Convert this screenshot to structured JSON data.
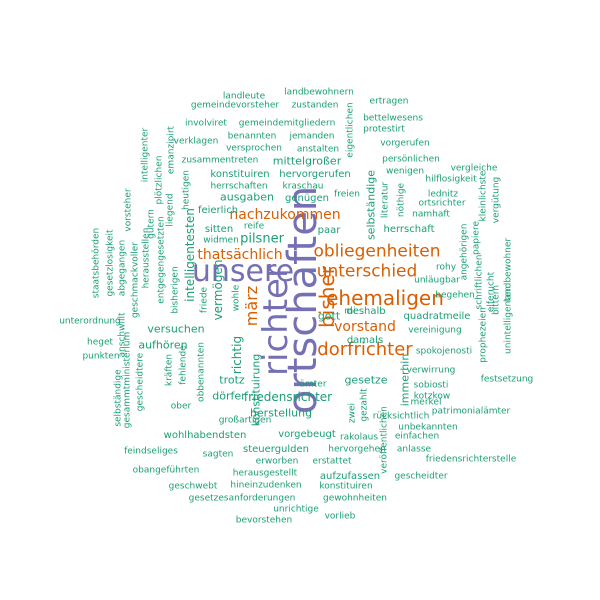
{
  "palette": {
    "teal": "#1b9e77",
    "orange": "#d95f02",
    "purple": "#7570b3"
  },
  "words": [
    {
      "text": "ortschaften",
      "color": "purple"
    },
    {
      "text": "richter",
      "color": "purple"
    },
    {
      "text": "unsere",
      "color": "purple"
    },
    {
      "text": "bisher",
      "color": "orange"
    },
    {
      "text": "ehemaligen",
      "color": "orange"
    },
    {
      "text": "dorfrichter",
      "color": "orange"
    },
    {
      "text": "obliegenheiten",
      "color": "orange"
    },
    {
      "text": "unterschied",
      "color": "orange"
    },
    {
      "text": "märz",
      "color": "orange"
    },
    {
      "text": "thatsächlich",
      "color": "orange"
    },
    {
      "text": "nachzukommen",
      "color": "orange"
    },
    {
      "text": "vorstand",
      "color": "orange"
    },
    {
      "text": "landleute",
      "color": "teal"
    },
    {
      "text": "landbewohnern",
      "color": "teal"
    },
    {
      "text": "gemeindevorsteher",
      "color": "teal"
    },
    {
      "text": "zustanden",
      "color": "teal"
    },
    {
      "text": "ertragen",
      "color": "teal"
    },
    {
      "text": "bettelwesens",
      "color": "teal"
    },
    {
      "text": "involviret",
      "color": "teal"
    },
    {
      "text": "gemeindemitgliedern",
      "color": "teal"
    },
    {
      "text": "protestirt",
      "color": "teal"
    },
    {
      "text": "benannten",
      "color": "teal"
    },
    {
      "text": "jemanden",
      "color": "teal"
    },
    {
      "text": "verklagen",
      "color": "teal"
    },
    {
      "text": "vorgerufen",
      "color": "teal"
    },
    {
      "text": "versprochen",
      "color": "teal"
    },
    {
      "text": "anstalten",
      "color": "teal"
    },
    {
      "text": "persönlichen",
      "color": "teal"
    },
    {
      "text": "zusammentreten",
      "color": "teal"
    },
    {
      "text": "mittelgroßer",
      "color": "teal"
    },
    {
      "text": "vergleiche",
      "color": "teal"
    },
    {
      "text": "wenigen",
      "color": "teal"
    },
    {
      "text": "hilflosigkeit",
      "color": "teal"
    },
    {
      "text": "konstituiren",
      "color": "teal"
    },
    {
      "text": "hervorgerufen",
      "color": "teal"
    },
    {
      "text": "herrschaften",
      "color": "teal"
    },
    {
      "text": "kraschau",
      "color": "teal"
    },
    {
      "text": "freien",
      "color": "teal"
    },
    {
      "text": "lednitz",
      "color": "teal"
    },
    {
      "text": "ausgaben",
      "color": "teal"
    },
    {
      "text": "genügen",
      "color": "teal"
    },
    {
      "text": "ortsrichter",
      "color": "teal"
    },
    {
      "text": "feierlich",
      "color": "teal"
    },
    {
      "text": "namhaft",
      "color": "teal"
    },
    {
      "text": "reife",
      "color": "teal"
    },
    {
      "text": "sitten",
      "color": "teal"
    },
    {
      "text": "widmen",
      "color": "teal"
    },
    {
      "text": "paar",
      "color": "teal"
    },
    {
      "text": "herrschaft",
      "color": "teal"
    },
    {
      "text": "pilsner",
      "color": "teal"
    },
    {
      "text": "rohy",
      "color": "teal"
    },
    {
      "text": "unläugbar",
      "color": "teal"
    },
    {
      "text": "begehen",
      "color": "teal"
    },
    {
      "text": "deshalb",
      "color": "teal"
    },
    {
      "text": "quadratmeile",
      "color": "teal"
    },
    {
      "text": "gott",
      "color": "teal"
    },
    {
      "text": "mi",
      "color": "teal"
    },
    {
      "text": "vereinigung",
      "color": "teal"
    },
    {
      "text": "versuchen",
      "color": "teal"
    },
    {
      "text": "unterordnung",
      "color": "teal"
    },
    {
      "text": "damals",
      "color": "teal"
    },
    {
      "text": "spokojenosti",
      "color": "teal"
    },
    {
      "text": "heget",
      "color": "teal"
    },
    {
      "text": "aufhören",
      "color": "teal"
    },
    {
      "text": "gesetze",
      "color": "teal"
    },
    {
      "text": "verwirrung",
      "color": "teal"
    },
    {
      "text": "punkten",
      "color": "teal"
    },
    {
      "text": "trotz",
      "color": "teal"
    },
    {
      "text": "sobiosti",
      "color": "teal"
    },
    {
      "text": "festsetzung",
      "color": "teal"
    },
    {
      "text": "ämter",
      "color": "teal"
    },
    {
      "text": "friedensrichter",
      "color": "teal"
    },
    {
      "text": "dörfer",
      "color": "teal"
    },
    {
      "text": "kotzkow",
      "color": "teal"
    },
    {
      "text": "merkel",
      "color": "teal"
    },
    {
      "text": "ober",
      "color": "teal"
    },
    {
      "text": "patrimonialämter",
      "color": "teal"
    },
    {
      "text": "herstellung",
      "color": "teal"
    },
    {
      "text": "rücksichtlich",
      "color": "teal"
    },
    {
      "text": "großartigen",
      "color": "teal"
    },
    {
      "text": "unbekannten",
      "color": "teal"
    },
    {
      "text": "wohlhabendsten",
      "color": "teal"
    },
    {
      "text": "vorgebeugt",
      "color": "teal"
    },
    {
      "text": "rakolaus",
      "color": "teal"
    },
    {
      "text": "einfachen",
      "color": "teal"
    },
    {
      "text": "steuergulden",
      "color": "teal"
    },
    {
      "text": "hervorgehen",
      "color": "teal"
    },
    {
      "text": "anlasse",
      "color": "teal"
    },
    {
      "text": "feindseliges",
      "color": "teal"
    },
    {
      "text": "sagten",
      "color": "teal"
    },
    {
      "text": "friedensrichterstelle",
      "color": "teal"
    },
    {
      "text": "erworben",
      "color": "teal"
    },
    {
      "text": "erstattet",
      "color": "teal"
    },
    {
      "text": "obangeführten",
      "color": "teal"
    },
    {
      "text": "herausgestellt",
      "color": "teal"
    },
    {
      "text": "aufzufassen",
      "color": "teal"
    },
    {
      "text": "gescheidter",
      "color": "teal"
    },
    {
      "text": "geschwebt",
      "color": "teal"
    },
    {
      "text": "hineinzudenken",
      "color": "teal"
    },
    {
      "text": "konstituiren",
      "color": "teal"
    },
    {
      "text": "gesetzesanforderungen",
      "color": "teal"
    },
    {
      "text": "gewohnheiten",
      "color": "teal"
    },
    {
      "text": "unrichtige",
      "color": "teal"
    },
    {
      "text": "bevorstehen",
      "color": "teal"
    },
    {
      "text": "vorlieb",
      "color": "teal"
    },
    {
      "text": "eigentlichen",
      "color": "teal"
    },
    {
      "text": "intelligenter",
      "color": "teal"
    },
    {
      "text": "emanzipirt",
      "color": "teal"
    },
    {
      "text": "plötzlichen",
      "color": "teal"
    },
    {
      "text": "vorsteher",
      "color": "teal"
    },
    {
      "text": "heutigen",
      "color": "teal"
    },
    {
      "text": "liegend",
      "color": "teal"
    },
    {
      "text": "gütern",
      "color": "teal"
    },
    {
      "text": "herausstellen",
      "color": "teal"
    },
    {
      "text": "staatsbehörden",
      "color": "teal"
    },
    {
      "text": "gesetzlosigkeit",
      "color": "teal"
    },
    {
      "text": "abgegangen",
      "color": "teal"
    },
    {
      "text": "geschmackvoller",
      "color": "teal"
    },
    {
      "text": "entgegengesetzten",
      "color": "teal"
    },
    {
      "text": "bisherigen",
      "color": "teal"
    },
    {
      "text": "intelligentesten",
      "color": "teal"
    },
    {
      "text": "vermögen",
      "color": "teal"
    },
    {
      "text": "friede",
      "color": "teal"
    },
    {
      "text": "wohle",
      "color": "teal"
    },
    {
      "text": "selbständige",
      "color": "teal"
    },
    {
      "text": "literatur",
      "color": "teal"
    },
    {
      "text": "nöthige",
      "color": "teal"
    },
    {
      "text": "angehörigen",
      "color": "teal"
    },
    {
      "text": "papiere",
      "color": "teal"
    },
    {
      "text": "kleinlichste",
      "color": "teal"
    },
    {
      "text": "vergütung",
      "color": "teal"
    },
    {
      "text": "bittern",
      "color": "teal"
    },
    {
      "text": "landbewohner",
      "color": "teal"
    },
    {
      "text": "schriftlichen",
      "color": "teal"
    },
    {
      "text": "elferucht",
      "color": "teal"
    },
    {
      "text": "unintelligenten",
      "color": "teal"
    },
    {
      "text": "prophezeien",
      "color": "teal"
    },
    {
      "text": "richtig",
      "color": "teal"
    },
    {
      "text": "konstituirung",
      "color": "teal"
    },
    {
      "text": "obbenannten",
      "color": "teal"
    },
    {
      "text": "fehlende",
      "color": "teal"
    },
    {
      "text": "kräften",
      "color": "teal"
    },
    {
      "text": "gesammtministerium",
      "color": "teal"
    },
    {
      "text": "gescheidtere",
      "color": "teal"
    },
    {
      "text": "anschwillt",
      "color": "teal"
    },
    {
      "text": "selbständige",
      "color": "teal"
    },
    {
      "text": "immerhin",
      "color": "teal"
    },
    {
      "text": "gezahlt",
      "color": "teal"
    },
    {
      "text": "zwei",
      "color": "teal"
    },
    {
      "text": "veröffentlichen",
      "color": "teal"
    }
  ]
}
